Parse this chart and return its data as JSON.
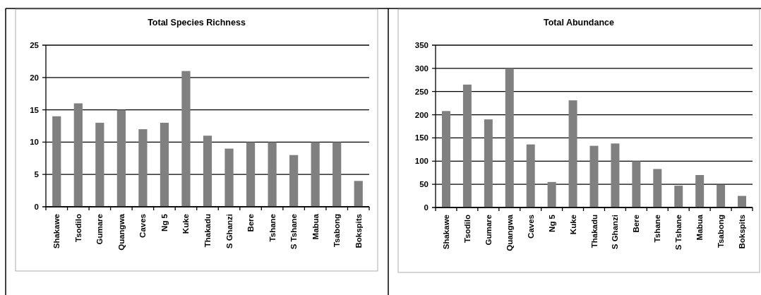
{
  "chart_data": [
    {
      "type": "bar",
      "title": "Total Species Richness",
      "categories": [
        "Shakawe",
        "Tsodilo",
        "Gumare",
        "Quangwa",
        "Caves",
        "Ng 5",
        "Kuke",
        "Thakadu",
        "S Ghanzi",
        "Bere",
        "Tshane",
        "S Tshane",
        "Mabua",
        "Tsabong",
        "Bokspits"
      ],
      "values": [
        14,
        16,
        13,
        15,
        12,
        13,
        21,
        11,
        9,
        10,
        10,
        8,
        10,
        10,
        4
      ],
      "color": "#808080",
      "ylim": [
        0,
        25
      ],
      "yticks": [
        0,
        5,
        10,
        15,
        20,
        25
      ],
      "grid": "y"
    },
    {
      "type": "bar",
      "title": "Total Abundance",
      "categories": [
        "Shakawe",
        "Tsodilo",
        "Gumare",
        "Quangwa",
        "Caves",
        "Ng 5",
        "Kuke",
        "Thakadu",
        "S Ghanzi",
        "Bere",
        "Tshane",
        "S Tshane",
        "Mabua",
        "Tsabong",
        "Bokspits"
      ],
      "values": [
        208,
        265,
        190,
        300,
        136,
        55,
        231,
        133,
        138,
        100,
        83,
        47,
        70,
        49,
        25
      ],
      "color": "#808080",
      "ylim": [
        0,
        350
      ],
      "yticks": [
        0,
        50,
        100,
        150,
        200,
        250,
        300,
        350
      ],
      "grid": "y"
    }
  ]
}
